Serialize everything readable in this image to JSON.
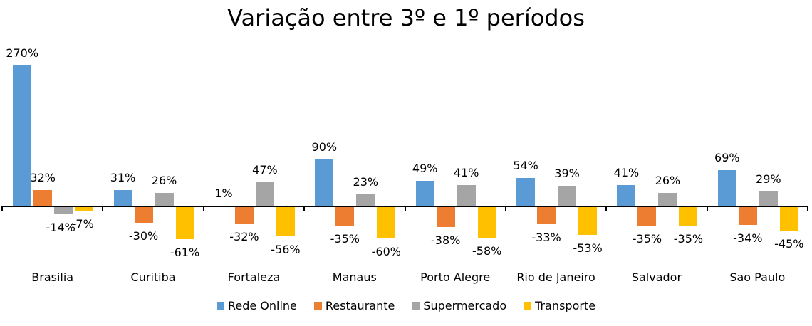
{
  "chart_data": {
    "type": "bar",
    "title": "Variação entre 3º e 1º períodos",
    "xlabel": "",
    "ylabel": "",
    "categories": [
      "Brasilia",
      "Curitiba",
      "Fortaleza",
      "Manaus",
      "Porto Alegre",
      "Rio de Janeiro",
      "Salvador",
      "Sao Paulo"
    ],
    "series": [
      {
        "name": "Rede Online",
        "color": "#5B9BD5",
        "values": [
          270,
          31,
          1,
          90,
          49,
          54,
          41,
          69
        ]
      },
      {
        "name": "Restaurante",
        "color": "#ED7D31",
        "values": [
          32,
          -30,
          -32,
          -35,
          -38,
          -33,
          -35,
          -34
        ]
      },
      {
        "name": "Supermercado",
        "color": "#A5A5A5",
        "values": [
          -14,
          26,
          47,
          23,
          41,
          39,
          26,
          29
        ]
      },
      {
        "name": "Transporte",
        "color": "#FFC000",
        "values": [
          -7,
          -61,
          -56,
          -60,
          -58,
          -53,
          -35,
          -45
        ]
      }
    ],
    "labels": [
      [
        "270%",
        "32%",
        "-14%",
        "-7%"
      ],
      [
        "31%",
        "-30%",
        "26%",
        "-61%"
      ],
      [
        "1%",
        "-32%",
        "47%",
        "-56%"
      ],
      [
        "90%",
        "-35%",
        "23%",
        "-60%"
      ],
      [
        "49%",
        "-38%",
        "41%",
        "-58%"
      ],
      [
        "54%",
        "-33%",
        "39%",
        "-53%"
      ],
      [
        "41%",
        "-35%",
        "26%",
        "-35%"
      ],
      [
        "69%",
        "-34%",
        "29%",
        "-45%"
      ]
    ],
    "grid": false,
    "legend_position": "bottom",
    "data_labels": true
  }
}
